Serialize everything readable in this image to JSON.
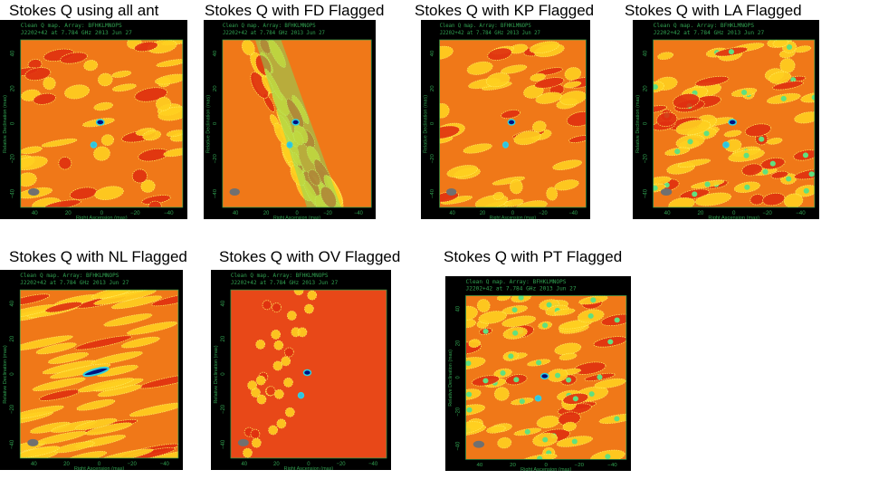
{
  "header_line1": "Clean Q map.  Array:  BFHKLMNOPS",
  "header_line2": "J2202+42 at 7.784 GHz 2013 Jun 27",
  "xlabel": "Right Ascension  (mas)",
  "ylabel": "Relative Declination  (mas)",
  "ticks": [
    "40",
    "20",
    "0",
    "−20",
    "−40"
  ],
  "colors": {
    "background": "#f07818",
    "contour": "#ffe000",
    "peak": "#001080",
    "axis": "#30a050"
  },
  "panels": [
    {
      "title": "Stokes Q using all ant",
      "style": "normal"
    },
    {
      "title": "Stokes Q with FD Flagged",
      "style": "stripe"
    },
    {
      "title": "Stokes Q with KP Flagged",
      "style": "normal"
    },
    {
      "title": "Stokes Q with LA Flagged",
      "style": "dense"
    },
    {
      "title": "Stokes Q with NL Flagged",
      "style": "elongated"
    },
    {
      "title": "Stokes Q with OV Flagged",
      "style": "ov"
    },
    {
      "title": "Stokes Q with PT Flagged",
      "style": "dense"
    }
  ]
}
